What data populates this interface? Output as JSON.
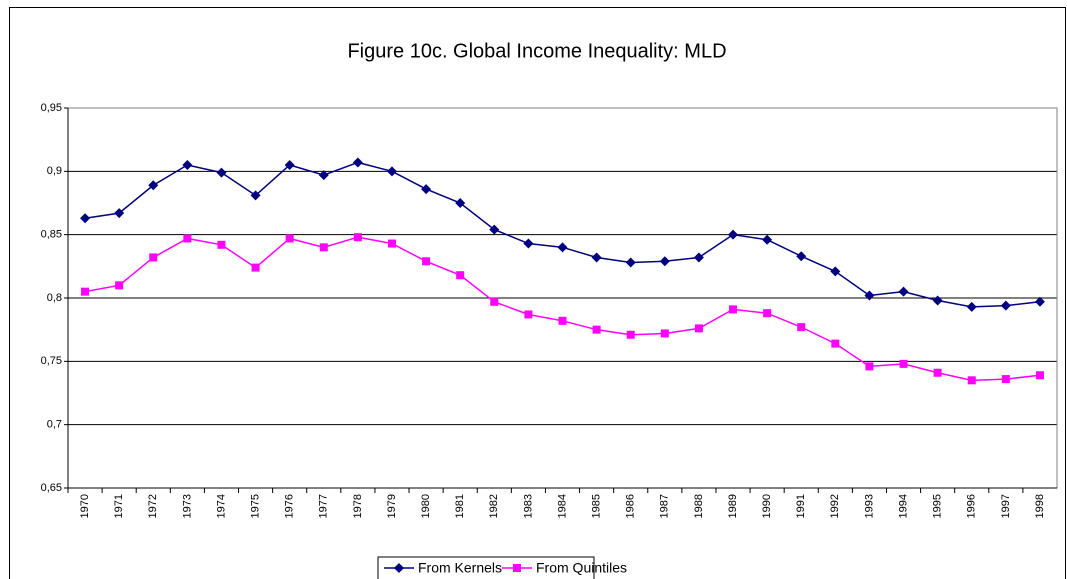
{
  "chart_data": {
    "type": "line",
    "title": "Figure 10c. Global Income Inequality: MLD",
    "categories": [
      "1970",
      "1971",
      "1972",
      "1973",
      "1974",
      "1975",
      "1976",
      "1977",
      "1978",
      "1979",
      "1980",
      "1981",
      "1982",
      "1983",
      "1984",
      "1985",
      "1986",
      "1987",
      "1988",
      "1989",
      "1990",
      "1991",
      "1992",
      "1993",
      "1994",
      "1995",
      "1996",
      "1997",
      "1998"
    ],
    "series": [
      {
        "name": "From Kernels",
        "color": "#000080",
        "marker": "diamond",
        "values": [
          0.863,
          0.867,
          0.889,
          0.905,
          0.899,
          0.881,
          0.905,
          0.897,
          0.907,
          0.9,
          0.886,
          0.875,
          0.854,
          0.843,
          0.84,
          0.832,
          0.828,
          0.829,
          0.832,
          0.85,
          0.846,
          0.833,
          0.821,
          0.802,
          0.805,
          0.798,
          0.793,
          0.794,
          0.797
        ]
      },
      {
        "name": "From Quintiles",
        "color": "#ff00ff",
        "marker": "square",
        "values": [
          0.805,
          0.81,
          0.832,
          0.847,
          0.842,
          0.824,
          0.847,
          0.84,
          0.848,
          0.843,
          0.829,
          0.818,
          0.797,
          0.787,
          0.782,
          0.775,
          0.771,
          0.772,
          0.776,
          0.791,
          0.788,
          0.777,
          0.764,
          0.746,
          0.748,
          0.741,
          0.735,
          0.736,
          0.739
        ]
      }
    ],
    "ylim": [
      0.65,
      0.95
    ],
    "yticks": [
      {
        "value": 0.65,
        "label": "0,65"
      },
      {
        "value": 0.7,
        "label": "0,7"
      },
      {
        "value": 0.75,
        "label": "0,75"
      },
      {
        "value": 0.8,
        "label": "0,8"
      },
      {
        "value": 0.85,
        "label": "0,85"
      },
      {
        "value": 0.9,
        "label": "0,9"
      },
      {
        "value": 0.95,
        "label": "0,95"
      }
    ],
    "grid": true,
    "legend": "bottom"
  }
}
